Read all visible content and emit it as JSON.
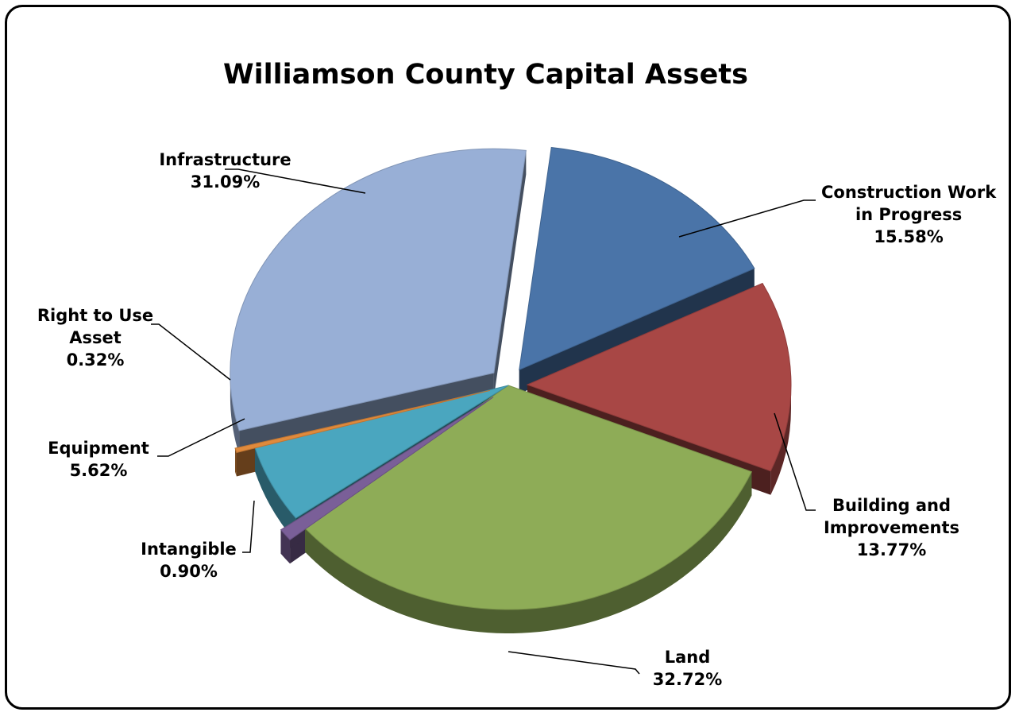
{
  "chart_data": {
    "type": "pie",
    "title": "Williamson County Capital Assets",
    "slices": [
      {
        "label_lines": [
          "Construction Work",
          "in Progress"
        ],
        "percent_text": "15.58%",
        "value": 15.58,
        "color": "#4a74a8",
        "exploded": true
      },
      {
        "label_lines": [
          "Building and",
          "Improvements"
        ],
        "percent_text": "13.77%",
        "value": 13.77,
        "color": "#a84745",
        "exploded": true
      },
      {
        "label_lines": [
          "Land"
        ],
        "percent_text": "32.72%",
        "value": 32.72,
        "color": "#8eac57",
        "exploded": false
      },
      {
        "label_lines": [
          "Intangible"
        ],
        "percent_text": "0.90%",
        "value": 0.9,
        "color": "#7a5f98",
        "exploded": true
      },
      {
        "label_lines": [
          "Equipment"
        ],
        "percent_text": "5.62%",
        "value": 5.62,
        "color": "#4aa6bf",
        "exploded": false
      },
      {
        "label_lines": [
          "Right to Use",
          "Asset"
        ],
        "percent_text": "0.32%",
        "value": 0.32,
        "color": "#e08a3c",
        "exploded": true
      },
      {
        "label_lines": [
          "Infrastructure"
        ],
        "percent_text": "31.09%",
        "value": 31.09,
        "color": "#98afd6",
        "exploded": true
      }
    ],
    "style": "3d-exploded-pie"
  }
}
